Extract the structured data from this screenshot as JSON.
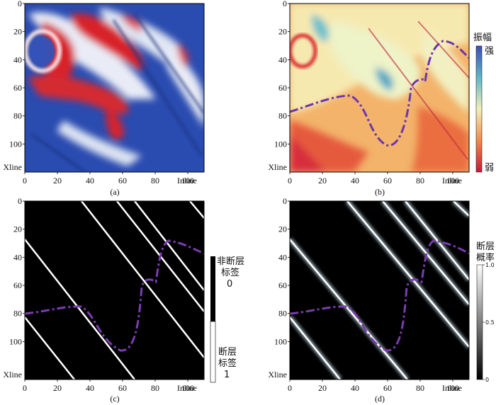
{
  "figure": {
    "panels": [
      {
        "id": "a",
        "label": "(a)"
      },
      {
        "id": "b",
        "label": "(b)"
      },
      {
        "id": "c",
        "label": "(c)"
      },
      {
        "id": "d",
        "label": "(d)"
      }
    ],
    "x_axis_name": "Inline",
    "y_axis_name": "Xline",
    "x_ticks": [
      "0",
      "20",
      "40",
      "60",
      "80",
      "100"
    ],
    "y_ticks": [
      "0",
      "20",
      "40",
      "60",
      "80",
      "100"
    ],
    "colorbar_b": {
      "title": "振幅",
      "top": "强",
      "bottom": "弱"
    },
    "colorbar_c": {
      "top_line1": "非断层",
      "top_line2": "标签",
      "top_line3": "0",
      "bottom_line1": "断层",
      "bottom_line2": "标签",
      "bottom_line3": "1"
    },
    "colorbar_d": {
      "title_line1": "断层",
      "title_line2": "概率",
      "ticks": [
        "1.0",
        "0.5",
        "0"
      ]
    }
  },
  "chart_data": [
    {
      "type": "heatmap",
      "panel": "a",
      "x": {
        "name": "Inline",
        "range": [
          0,
          110
        ]
      },
      "y": {
        "name": "Xline",
        "range": [
          0,
          120
        ]
      }
    },
    {
      "type": "heatmap",
      "panel": "b",
      "x": {
        "name": "Inline",
        "range": [
          0,
          110
        ]
      },
      "y": {
        "name": "Xline",
        "range": [
          0,
          120
        ]
      },
      "colorbar": [
        "弱",
        "强"
      ]
    },
    {
      "type": "heatmap",
      "panel": "c",
      "x": {
        "name": "Inline",
        "range": [
          0,
          110
        ]
      },
      "y": {
        "name": "Xline",
        "range": [
          0,
          120
        ]
      },
      "colorbar": [
        "1",
        "0"
      ]
    },
    {
      "type": "heatmap",
      "panel": "d",
      "x": {
        "name": "Inline",
        "range": [
          0,
          110
        ]
      },
      "y": {
        "name": "Xline",
        "range": [
          0,
          120
        ]
      },
      "colorbar": [
        0,
        1.0
      ]
    }
  ],
  "colors": {
    "red": "#d8202a",
    "blue": "#1f3fa8",
    "purple": "#7a3db0"
  }
}
